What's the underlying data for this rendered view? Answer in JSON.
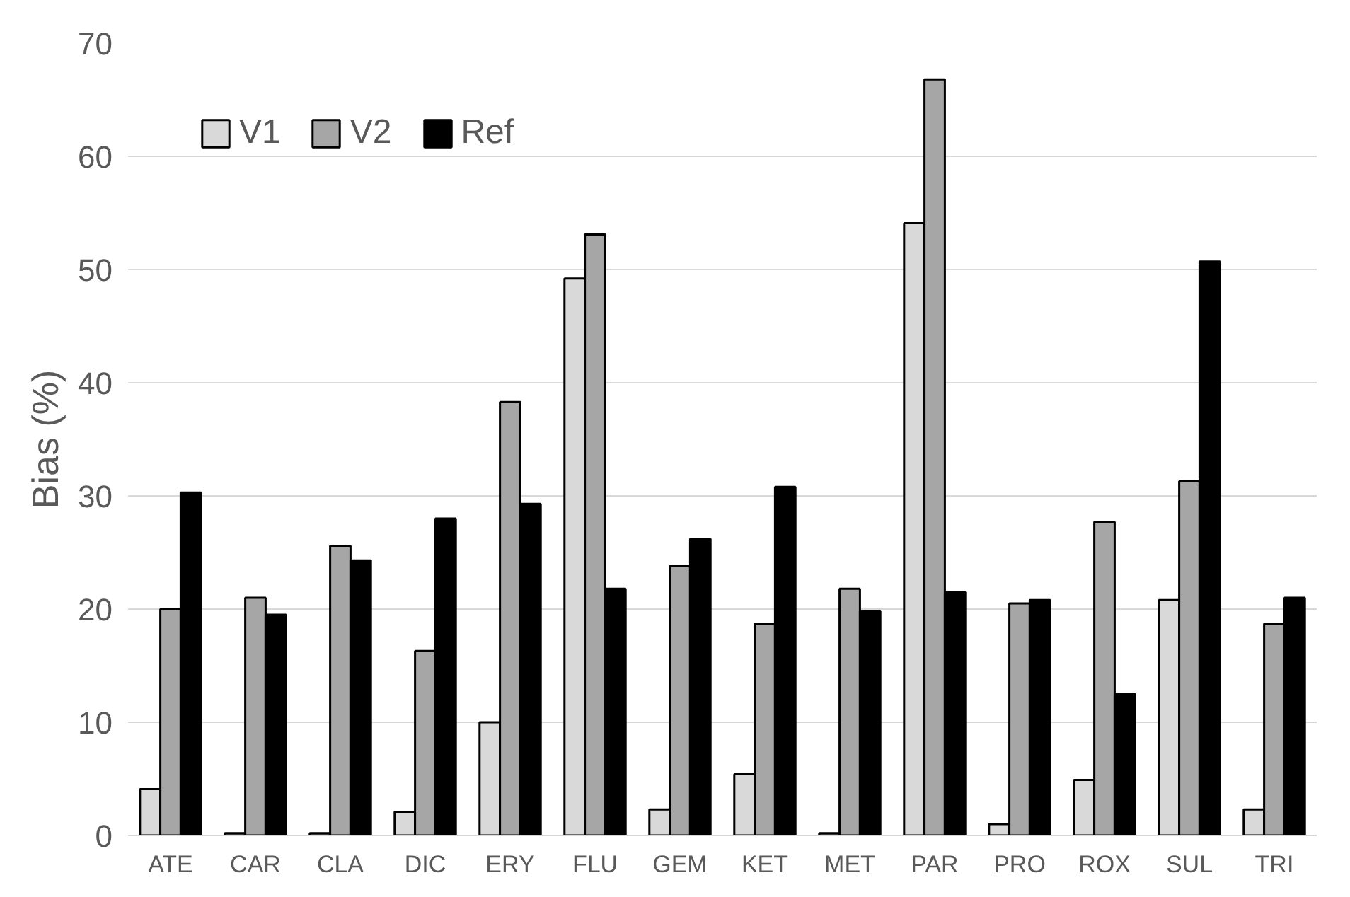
{
  "chart_data": {
    "type": "bar",
    "ylabel": "Bias (%)",
    "categories": [
      "ATE",
      "CAR",
      "CLA",
      "DIC",
      "ERY",
      "FLU",
      "GEM",
      "KET",
      "MET",
      "PAR",
      "PRO",
      "ROX",
      "SUL",
      "TRI"
    ],
    "series": [
      {
        "name": "V1",
        "color": "#d9d9d9",
        "values": [
          4.1,
          0.2,
          0.2,
          2.1,
          10,
          49.2,
          2.3,
          5.4,
          0.2,
          54.1,
          1.0,
          4.9,
          20.8,
          2.3
        ]
      },
      {
        "name": "V2",
        "color": "#a6a6a6",
        "values": [
          20,
          21,
          25.6,
          16.3,
          38.3,
          53.1,
          23.8,
          18.7,
          21.8,
          66.8,
          20.5,
          27.7,
          31.3,
          18.7
        ]
      },
      {
        "name": "Ref",
        "color": "#000000",
        "values": [
          30.3,
          19.5,
          24.3,
          28,
          29.3,
          21.8,
          26.2,
          30.8,
          19.8,
          21.5,
          20.8,
          12.5,
          50.7,
          21.0
        ]
      }
    ],
    "ylim": [
      0,
      70
    ],
    "yticks": [
      0,
      10,
      20,
      30,
      40,
      50,
      60,
      70
    ],
    "grid": "y",
    "legend": "top left"
  }
}
